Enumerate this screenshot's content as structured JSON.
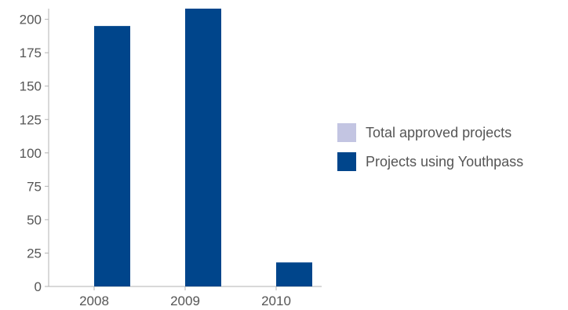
{
  "chart_data": {
    "type": "bar",
    "title": "",
    "xlabel": "",
    "ylabel": "",
    "categories": [
      "2008",
      "2009",
      "2010"
    ],
    "ylim": [
      0,
      208
    ],
    "yticks": [
      0,
      25,
      50,
      75,
      100,
      125,
      150,
      175,
      200
    ],
    "legend_position": "right",
    "grid": false,
    "series": [
      {
        "name": "Total approved projects",
        "color": "#c3c5e2",
        "values": [
          0,
          0,
          0
        ]
      },
      {
        "name": "Projects using Youthpass",
        "color": "#00458b",
        "values": [
          195,
          208,
          18
        ]
      }
    ]
  }
}
